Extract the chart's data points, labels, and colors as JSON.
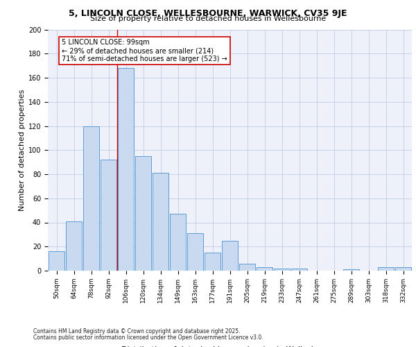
{
  "title1": "5, LINCOLN CLOSE, WELLESBOURNE, WARWICK, CV35 9JE",
  "title2": "Size of property relative to detached houses in Wellesbourne",
  "xlabel": "Distribution of detached houses by size in Wellesbourne",
  "ylabel": "Number of detached properties",
  "categories": [
    "50sqm",
    "64sqm",
    "78sqm",
    "92sqm",
    "106sqm",
    "120sqm",
    "134sqm",
    "149sqm",
    "163sqm",
    "177sqm",
    "191sqm",
    "205sqm",
    "219sqm",
    "233sqm",
    "247sqm",
    "261sqm",
    "275sqm",
    "289sqm",
    "303sqm",
    "318sqm",
    "332sqm"
  ],
  "values": [
    16,
    41,
    120,
    92,
    168,
    95,
    81,
    47,
    31,
    15,
    25,
    6,
    3,
    2,
    2,
    0,
    0,
    1,
    0,
    3,
    3
  ],
  "bar_color": "#c9d9f0",
  "bar_edge_color": "#5b9bd5",
  "vline_x": 3.5,
  "vline_color": "#cc0000",
  "annotation_line1": "5 LINCOLN CLOSE: 99sqm",
  "annotation_line2": "← 29% of detached houses are smaller (214)",
  "annotation_line3": "71% of semi-detached houses are larger (523) →",
  "annotation_box_color": "#ffffff",
  "annotation_box_edge": "#cc0000",
  "ylim": [
    0,
    200
  ],
  "yticks": [
    0,
    20,
    40,
    60,
    80,
    100,
    120,
    140,
    160,
    180,
    200
  ],
  "footer1": "Contains HM Land Registry data © Crown copyright and database right 2025.",
  "footer2": "Contains public sector information licensed under the Open Government Licence v3.0.",
  "bg_color": "#eef1fa",
  "grid_color": "#c8d0e8",
  "title_fontsize": 9,
  "subtitle_fontsize": 8,
  "ylabel_fontsize": 8,
  "xlabel_fontsize": 8,
  "tick_fontsize": 6.5,
  "annotation_fontsize": 7
}
